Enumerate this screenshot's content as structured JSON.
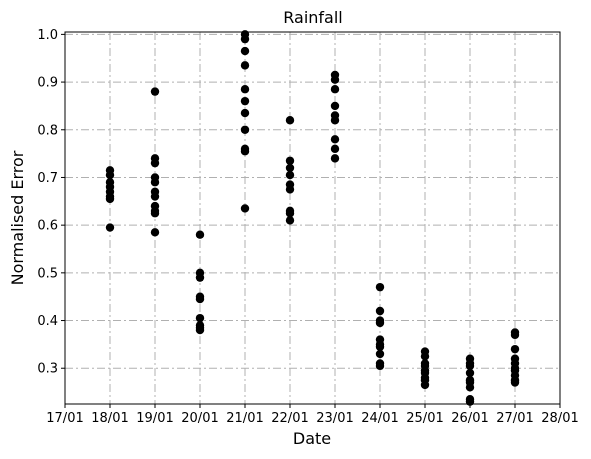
{
  "chart_data": {
    "type": "scatter",
    "title": "Rainfall",
    "xlabel": "Date",
    "ylabel": "Normalised Error",
    "x_ticks": [
      "17/01",
      "18/01",
      "19/01",
      "20/01",
      "21/01",
      "22/01",
      "23/01",
      "24/01",
      "25/01",
      "26/01",
      "27/01",
      "28/01"
    ],
    "ylim": [
      0.225,
      1.005
    ],
    "y_ticks": [
      "0.3",
      "0.4",
      "0.5",
      "0.6",
      "0.7",
      "0.8",
      "0.9",
      "1.0"
    ],
    "grid": true,
    "marker_color": "#000000",
    "points": [
      {
        "x": "18/01",
        "ys": [
          0.715,
          0.705,
          0.69,
          0.68,
          0.67,
          0.66,
          0.655,
          0.595
        ]
      },
      {
        "x": "19/01",
        "ys": [
          0.88,
          0.74,
          0.73,
          0.7,
          0.69,
          0.67,
          0.66,
          0.64,
          0.63,
          0.625,
          0.585
        ]
      },
      {
        "x": "20/01",
        "ys": [
          0.58,
          0.5,
          0.49,
          0.45,
          0.445,
          0.405,
          0.39,
          0.385,
          0.38
        ]
      },
      {
        "x": "21/01",
        "ys": [
          1.0,
          0.99,
          0.965,
          0.935,
          0.885,
          0.86,
          0.835,
          0.8,
          0.76,
          0.755,
          0.635
        ]
      },
      {
        "x": "22/01",
        "ys": [
          0.82,
          0.735,
          0.72,
          0.705,
          0.685,
          0.675,
          0.63,
          0.625,
          0.61
        ]
      },
      {
        "x": "23/01",
        "ys": [
          0.915,
          0.905,
          0.885,
          0.85,
          0.83,
          0.82,
          0.78,
          0.76,
          0.74
        ]
      },
      {
        "x": "24/01",
        "ys": [
          0.47,
          0.42,
          0.4,
          0.395,
          0.36,
          0.35,
          0.345,
          0.33,
          0.31,
          0.305
        ]
      },
      {
        "x": "25/01",
        "ys": [
          0.335,
          0.325,
          0.31,
          0.305,
          0.295,
          0.29,
          0.28,
          0.275,
          0.265
        ]
      },
      {
        "x": "26/01",
        "ys": [
          0.32,
          0.31,
          0.305,
          0.29,
          0.275,
          0.27,
          0.26,
          0.235,
          0.23
        ]
      },
      {
        "x": "27/01",
        "ys": [
          0.375,
          0.37,
          0.34,
          0.32,
          0.31,
          0.3,
          0.295,
          0.285,
          0.275,
          0.27
        ]
      }
    ]
  }
}
